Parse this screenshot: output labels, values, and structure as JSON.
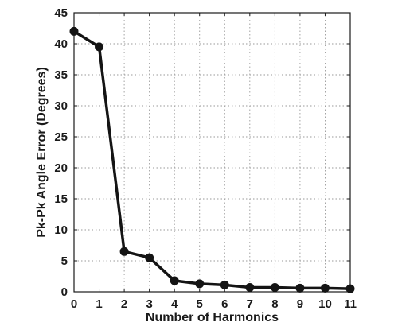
{
  "chart_data": {
    "type": "line",
    "title": "",
    "xlabel": "Number of Harmonics",
    "ylabel": "Pk-Pk Angle Error (Degrees)",
    "xlim": [
      0,
      11
    ],
    "ylim": [
      0,
      45
    ],
    "x_ticks": [
      0,
      1,
      2,
      3,
      4,
      5,
      6,
      7,
      8,
      9,
      10,
      11
    ],
    "y_ticks": [
      0,
      5,
      10,
      15,
      20,
      25,
      30,
      35,
      40,
      45
    ],
    "grid": true,
    "legend": "none",
    "x": [
      0,
      1,
      2,
      3,
      4,
      5,
      6,
      7,
      8,
      9,
      10,
      11
    ],
    "series": [
      {
        "values": [
          42.0,
          39.5,
          6.5,
          5.5,
          1.8,
          1.3,
          1.1,
          0.7,
          0.7,
          0.6,
          0.6,
          0.5
        ],
        "color": "#141414",
        "marker": "circle"
      }
    ]
  }
}
